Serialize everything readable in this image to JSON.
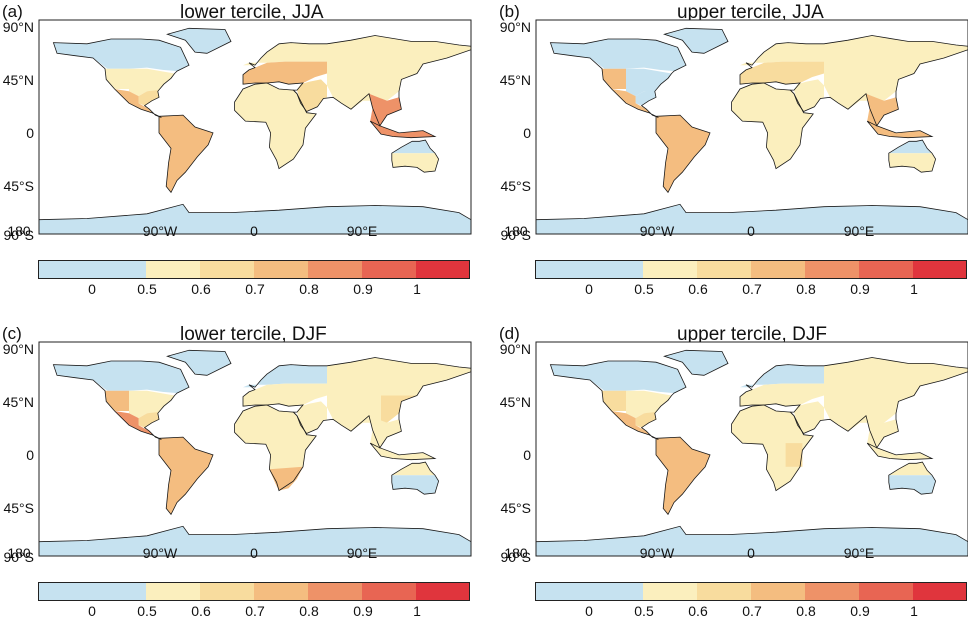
{
  "colors": {
    "c0": "#c6e2f0",
    "c1": "#fbefbe",
    "c2": "#f8dc9e",
    "c3": "#f4bd80",
    "c4": "#ee9268",
    "c5": "#e86553",
    "c6": "#e0353d",
    "ocean": "#ffffff",
    "coast": "#1a1a1a"
  },
  "colorbar": {
    "tick_labels": [
      "0",
      "0.5",
      "0.6",
      "0.7",
      "0.8",
      "0.9",
      "1"
    ],
    "bins": [
      "0–0.5",
      "0.5–0.6",
      "0.6–0.7",
      "0.7–0.8",
      "0.8–0.9",
      "0.9–1",
      ">1"
    ]
  },
  "axes": {
    "lat_labels": [
      "90°N",
      "45°N",
      "0",
      "45°S",
      "90°S"
    ],
    "lon_labels": [
      "180",
      "90°W",
      "0",
      "90°E"
    ]
  },
  "panels": [
    {
      "label": "(a)",
      "title": "lower tercile, JJA",
      "regions": {
        "nam_n": "c0",
        "nam_w": "c1",
        "nam_e": "c1",
        "nam_c": "c1",
        "nam_s": "c2",
        "cam": "c3",
        "sam": "c3",
        "greenland": "c0",
        "eur_n": "c1",
        "eur_s": "c3",
        "africa": "c1",
        "mideast": "c2",
        "asia_n": "c1",
        "seasia": "c4",
        "aus_n": "c0",
        "aus_s": "c1",
        "antarctica": "c0"
      }
    },
    {
      "label": "(b)",
      "title": "upper tercile, JJA",
      "regions": {
        "nam_n": "c0",
        "nam_w": "c3",
        "nam_e": "c0",
        "nam_c": "c0",
        "nam_s": "c0",
        "cam": "c3",
        "sam": "c3",
        "greenland": "c0",
        "eur_n": "c1",
        "eur_s": "c2",
        "africa": "c1",
        "mideast": "c1",
        "asia_n": "c1",
        "seasia": "c3",
        "aus_n": "c0",
        "aus_s": "c1",
        "antarctica": "c0"
      }
    },
    {
      "label": "(c)",
      "title": "lower tercile, DJF",
      "regions": {
        "nam_n": "c0",
        "nam_w": "c3",
        "nam_e": "c1",
        "nam_c": "c1",
        "nam_s": "c2",
        "cam": "c4",
        "sam": "c3",
        "greenland": "c0",
        "eur_n": "c0",
        "eur_s": "c1",
        "africa": "c1",
        "africa_s": "c3",
        "mideast": "c1",
        "asia_n": "c1",
        "asia_e": "c2",
        "seasia": "c1",
        "aus_n": "c1",
        "aus_s": "c0",
        "antarctica": "c0"
      }
    },
    {
      "label": "(d)",
      "title": "upper tercile, DJF",
      "regions": {
        "nam_n": "c0",
        "nam_w": "c2",
        "nam_e": "c1",
        "nam_c": "c1",
        "nam_s": "c2",
        "cam": "c3",
        "sam": "c3",
        "greenland": "c0",
        "eur_n": "c0",
        "eur_s": "c1",
        "africa": "c1",
        "africa_e": "c2",
        "mideast": "c1",
        "asia_n": "c1",
        "seasia": "c1",
        "aus_n": "c1",
        "aus_s": "c0",
        "antarctica": "c0"
      }
    }
  ]
}
